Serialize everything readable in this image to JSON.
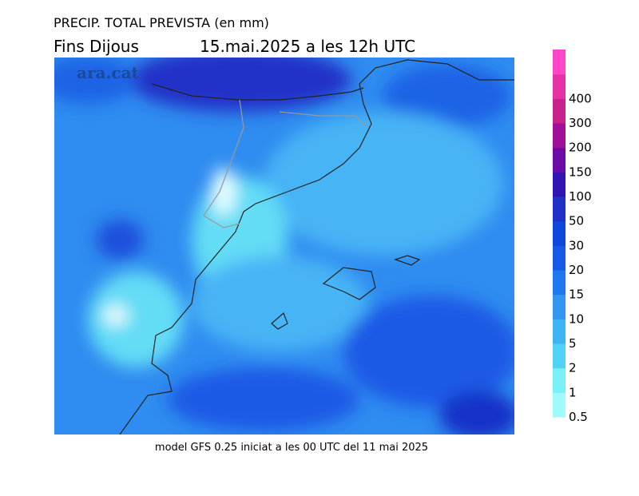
{
  "header": {
    "title": "PRECIP. TOTAL PREVISTA (en mm)",
    "period": "Fins Dijous",
    "valid_time": "15.mai.2025 a les 12h UTC"
  },
  "watermark": "ara.cat",
  "footer": "model GFS 0.25 iniciat a les 00 UTC del 11 mai 2025",
  "legend": {
    "levels": [
      0.5,
      1,
      2,
      5,
      10,
      15,
      20,
      30,
      50,
      100,
      150,
      200,
      300,
      400
    ],
    "colors": [
      "#a0fafa",
      "#78f0f5",
      "#50d2f5",
      "#3cb4f5",
      "#3296f0",
      "#1e78f0",
      "#145ae6",
      "#0f46dc",
      "#1e32c8",
      "#3214b4",
      "#6e0aa5",
      "#a00f96",
      "#c8238c",
      "#e632a5",
      "#ff46c8"
    ]
  }
}
